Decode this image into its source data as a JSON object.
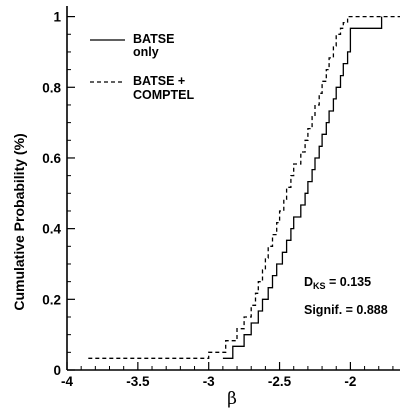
{
  "chart_data": {
    "type": "line",
    "xlabel": "β",
    "ylabel": "Cumulative Probability (%)",
    "xlim": [
      -4,
      -1.65
    ],
    "ylim": [
      0,
      1.03
    ],
    "x_ticks": [
      -4,
      -3.5,
      -3,
      -2.5,
      -2
    ],
    "x_tick_labels": [
      "-4",
      "-3.5",
      "-3",
      "-2.5",
      "-2"
    ],
    "y_ticks": [
      0,
      0.2,
      0.4,
      0.6,
      0.8,
      1
    ],
    "y_tick_labels": [
      "0",
      "0.2",
      "0.4",
      "0.6",
      "0.8",
      "1"
    ],
    "grid": false,
    "legend_position": "top-left",
    "series": [
      {
        "name": "BATSE only",
        "name_lines": [
          "BATSE",
          "only"
        ],
        "style": "solid",
        "color": "#000000",
        "x": [
          -2.9,
          -2.83,
          -2.75,
          -2.7,
          -2.65,
          -2.62,
          -2.58,
          -2.55,
          -2.52,
          -2.48,
          -2.45,
          -2.42,
          -2.4,
          -2.35,
          -2.32,
          -2.3,
          -2.27,
          -2.25,
          -2.22,
          -2.2,
          -2.17,
          -2.15,
          -2.12,
          -2.1,
          -2.07,
          -2.05,
          -2.02,
          -2.0,
          -1.87,
          -1.78
        ],
        "y": [
          0.033,
          0.067,
          0.1,
          0.133,
          0.167,
          0.2,
          0.233,
          0.267,
          0.3,
          0.333,
          0.367,
          0.4,
          0.433,
          0.467,
          0.5,
          0.533,
          0.567,
          0.6,
          0.633,
          0.667,
          0.7,
          0.733,
          0.767,
          0.8,
          0.833,
          0.867,
          0.9,
          0.967,
          0.967,
          1.0
        ]
      },
      {
        "name": "BATSE + COMPTEL",
        "name_lines": [
          "BATSE +",
          "COMPTEL"
        ],
        "style": "dashed",
        "color": "#000000",
        "x": [
          -3.85,
          -3.0,
          -2.88,
          -2.8,
          -2.75,
          -2.7,
          -2.67,
          -2.65,
          -2.62,
          -2.6,
          -2.58,
          -2.55,
          -2.52,
          -2.5,
          -2.47,
          -2.45,
          -2.42,
          -2.4,
          -2.35,
          -2.32,
          -2.3,
          -2.27,
          -2.25,
          -2.22,
          -2.2,
          -2.17,
          -2.15,
          -2.12,
          -2.1,
          -2.07,
          -2.05,
          -2.02,
          -1.9,
          -1.65
        ],
        "y": [
          0.033,
          0.05,
          0.083,
          0.117,
          0.15,
          0.183,
          0.217,
          0.25,
          0.283,
          0.317,
          0.35,
          0.383,
          0.417,
          0.45,
          0.483,
          0.517,
          0.55,
          0.583,
          0.617,
          0.65,
          0.683,
          0.717,
          0.75,
          0.783,
          0.817,
          0.85,
          0.883,
          0.917,
          0.95,
          0.967,
          0.983,
          1.0,
          1.0,
          1.0
        ]
      }
    ],
    "annotations": {
      "dks_main": "D",
      "dks_sub": "KS",
      "dks_value": " = 0.135",
      "signif": "Signif. = 0.888"
    }
  }
}
